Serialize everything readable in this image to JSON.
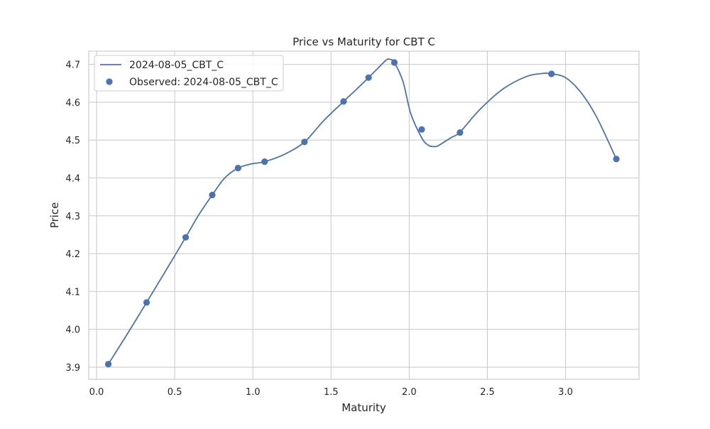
{
  "chart_data": {
    "type": "line",
    "title": "Price vs Maturity for CBT C",
    "xlabel": "Maturity",
    "ylabel": "Price",
    "xlim": [
      -0.05,
      3.47
    ],
    "ylim": [
      3.868,
      4.735
    ],
    "x_ticks": [
      "0.0",
      "0.5",
      "1.0",
      "1.5",
      "2.0",
      "2.5",
      "3.0"
    ],
    "x_tick_values": [
      0.0,
      0.5,
      1.0,
      1.5,
      2.0,
      2.5,
      3.0
    ],
    "y_ticks": [
      "3.9",
      "4.0",
      "4.1",
      "4.2",
      "4.3",
      "4.4",
      "4.5",
      "4.6",
      "4.7"
    ],
    "y_tick_values": [
      3.9,
      4.0,
      4.1,
      4.2,
      4.3,
      4.4,
      4.5,
      4.6,
      4.7
    ],
    "grid": true,
    "legend_position": "top-left",
    "series": [
      {
        "name": "2024-08-05_CBT_C",
        "kind": "line",
        "color": "#4c72b0",
        "x": [
          0.075,
          0.2,
          0.32,
          0.45,
          0.57,
          0.65,
          0.74,
          0.82,
          0.905,
          0.99,
          1.075,
          1.2,
          1.33,
          1.45,
          1.58,
          1.66,
          1.74,
          1.8,
          1.855,
          1.88,
          1.905,
          1.96,
          2.01,
          2.08,
          2.12,
          2.15,
          2.18,
          2.22,
          2.27,
          2.325,
          2.45,
          2.6,
          2.75,
          2.85,
          2.91,
          3.0,
          3.1,
          3.2,
          3.325
        ],
        "y": [
          3.908,
          3.99,
          4.071,
          4.16,
          4.243,
          4.3,
          4.355,
          4.4,
          4.426,
          4.437,
          4.443,
          4.462,
          4.495,
          4.55,
          4.602,
          4.633,
          4.665,
          4.69,
          4.712,
          4.713,
          4.705,
          4.655,
          4.57,
          4.506,
          4.487,
          4.483,
          4.484,
          4.494,
          4.507,
          4.521,
          4.58,
          4.635,
          4.668,
          4.676,
          4.675,
          4.665,
          4.625,
          4.56,
          4.45
        ]
      },
      {
        "name": "Observed: 2024-08-05_CBT_C",
        "kind": "scatter",
        "color": "#4c72b0",
        "x": [
          0.075,
          0.32,
          0.57,
          0.74,
          0.905,
          1.075,
          1.33,
          1.58,
          1.74,
          1.905,
          2.08,
          2.325,
          2.91,
          3.325
        ],
        "y": [
          3.908,
          4.071,
          4.243,
          4.355,
          4.426,
          4.443,
          4.495,
          4.602,
          4.665,
          4.705,
          4.528,
          4.52,
          4.675,
          4.45
        ]
      }
    ]
  }
}
